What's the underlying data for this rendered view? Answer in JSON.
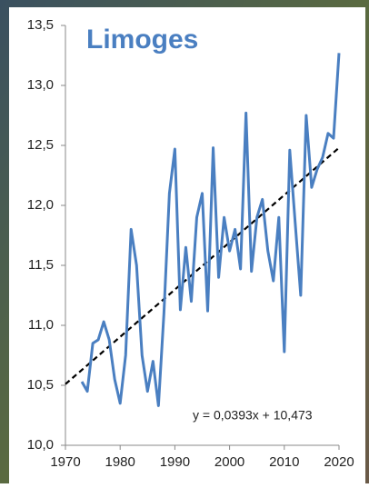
{
  "chart_data": {
    "type": "line",
    "title": "Limoges",
    "annotation": "y = 0,0393x + 10,473",
    "x": [
      1973,
      1974,
      1975,
      1976,
      1977,
      1978,
      1979,
      1980,
      1981,
      1982,
      1983,
      1984,
      1985,
      1986,
      1987,
      1988,
      1989,
      1990,
      1991,
      1992,
      1993,
      1994,
      1995,
      1996,
      1997,
      1998,
      1999,
      2000,
      2001,
      2002,
      2003,
      2004,
      2005,
      2006,
      2007,
      2008,
      2009,
      2010,
      2011,
      2012,
      2013,
      2014,
      2015,
      2016,
      2017,
      2018,
      2019,
      2020
    ],
    "series": [
      {
        "color": "#4a7fc1",
        "values": [
          10.53,
          10.45,
          10.85,
          10.88,
          11.03,
          10.88,
          10.55,
          10.35,
          10.75,
          11.8,
          11.5,
          10.75,
          10.45,
          10.7,
          10.33,
          11.1,
          12.1,
          12.47,
          11.13,
          11.65,
          11.2,
          11.9,
          12.1,
          11.12,
          12.48,
          11.4,
          11.9,
          11.62,
          11.8,
          11.47,
          12.77,
          11.45,
          11.9,
          12.05,
          11.62,
          11.37,
          11.9,
          10.78,
          12.46,
          11.85,
          11.25,
          12.75,
          12.15,
          12.3,
          12.4,
          12.6,
          12.56,
          13.27
        ]
      }
    ],
    "trend": {
      "x": [
        1970,
        2020
      ],
      "values": [
        10.51,
        12.48
      ],
      "color": "#000000"
    },
    "xlim": [
      1970,
      2020
    ],
    "xticks": [
      1970,
      1980,
      1990,
      2000,
      2010,
      2020
    ],
    "ylim": [
      10,
      13.5
    ],
    "yticks": [
      {
        "value": 10,
        "label": "10,0"
      },
      {
        "value": 10.5,
        "label": "10,5"
      },
      {
        "value": 11,
        "label": "11,0"
      },
      {
        "value": 11.5,
        "label": "11,5"
      },
      {
        "value": 12,
        "label": "12,0"
      },
      {
        "value": 12.5,
        "label": "12,5"
      },
      {
        "value": 13,
        "label": "13,0"
      },
      {
        "value": 13.5,
        "label": "13,5"
      }
    ],
    "grid": false
  }
}
